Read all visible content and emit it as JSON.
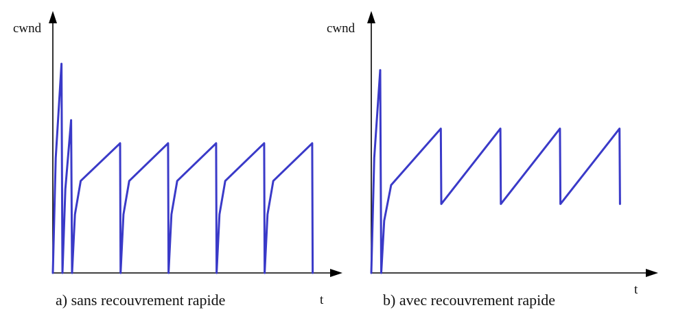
{
  "colors": {
    "curve": "#3a3ac8",
    "axis": "#000000",
    "background": "#ffffff"
  },
  "panels": [
    {
      "id": "a",
      "y_label": "cwnd",
      "x_label": "t",
      "caption": "a) sans recouvrement rapide",
      "curve_points": [
        [
          0,
          0
        ],
        [
          0.3,
          0.55
        ],
        [
          0.9,
          1.0
        ],
        [
          1.0,
          0
        ],
        [
          1.3,
          0.4
        ],
        [
          1.9,
          0.73
        ],
        [
          2.0,
          0
        ],
        [
          2.3,
          0.28
        ],
        [
          2.9,
          0.44
        ],
        [
          7.0,
          0.62
        ],
        [
          7.05,
          0
        ],
        [
          7.35,
          0.28
        ],
        [
          7.95,
          0.44
        ],
        [
          12.0,
          0.62
        ],
        [
          12.05,
          0
        ],
        [
          12.35,
          0.28
        ],
        [
          12.95,
          0.44
        ],
        [
          17.0,
          0.62
        ],
        [
          17.05,
          0
        ],
        [
          17.35,
          0.28
        ],
        [
          17.95,
          0.44
        ],
        [
          22.0,
          0.62
        ],
        [
          22.05,
          0
        ],
        [
          22.35,
          0.28
        ],
        [
          22.95,
          0.44
        ],
        [
          27.0,
          0.62
        ],
        [
          27.05,
          0
        ]
      ]
    },
    {
      "id": "b",
      "y_label": "cwnd",
      "x_label": "t",
      "caption": "b) avec recouvrement rapide",
      "curve_points": [
        [
          0,
          0
        ],
        [
          0.3,
          0.55
        ],
        [
          0.9,
          0.97
        ],
        [
          1.0,
          0
        ],
        [
          1.3,
          0.25
        ],
        [
          2.0,
          0.42
        ],
        [
          7.0,
          0.69
        ],
        [
          7.05,
          0.33
        ],
        [
          13.0,
          0.69
        ],
        [
          13.05,
          0.33
        ],
        [
          19.0,
          0.69
        ],
        [
          19.05,
          0.33
        ],
        [
          25.0,
          0.69
        ],
        [
          25.05,
          0.33
        ]
      ]
    }
  ]
}
